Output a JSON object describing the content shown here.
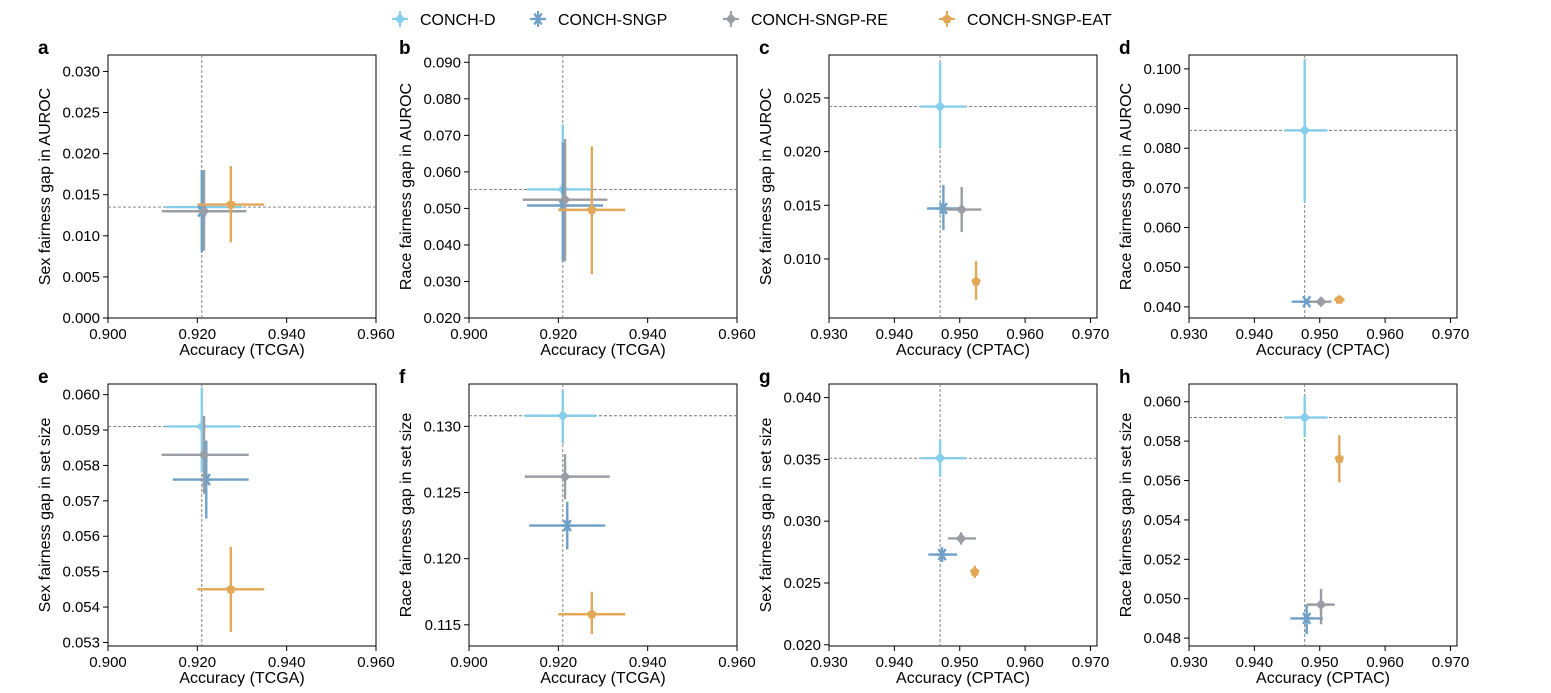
{
  "legend": [
    {
      "name": "CONCH-D",
      "color": "#87CEEB",
      "marker": "diamond"
    },
    {
      "name": "CONCH-SNGP",
      "color": "#6FA0C8",
      "marker": "star"
    },
    {
      "name": "CONCH-SNGP-RE",
      "color": "#9A9DA3",
      "marker": "diamond"
    },
    {
      "name": "CONCH-SNGP-EAT",
      "color": "#E2A857",
      "marker": "pentagon"
    }
  ],
  "chart_data": [
    {
      "panel": "a",
      "type": "scatter",
      "xlabel": "Accuracy (TCGA)",
      "ylabel": "Sex fairness gap in AUROC",
      "xlim": [
        0.9,
        0.96
      ],
      "ylim": [
        0.0,
        0.032
      ],
      "xticks": [
        "0.900",
        "0.920",
        "0.940",
        "0.960"
      ],
      "yticks": [
        "0.000",
        "0.005",
        "0.010",
        "0.015",
        "0.020",
        "0.025",
        "0.030"
      ],
      "ref": {
        "x": 0.921,
        "y": 0.0135
      },
      "points": [
        {
          "series": "CONCH-D",
          "x": 0.921,
          "y": 0.0135,
          "xerr": [
            0.913,
            0.93
          ],
          "yerr": [
            0.0085,
            0.018
          ]
        },
        {
          "series": "CONCH-SNGP",
          "x": 0.921,
          "y": 0.013,
          "xerr": [
            0.913,
            0.93
          ],
          "yerr": [
            0.008,
            0.018
          ]
        },
        {
          "series": "CONCH-SNGP-RE",
          "x": 0.9215,
          "y": 0.013,
          "xerr": [
            0.912,
            0.931
          ],
          "yerr": [
            0.0082,
            0.018
          ]
        },
        {
          "series": "CONCH-SNGP-EAT",
          "x": 0.9275,
          "y": 0.0138,
          "xerr": [
            0.92,
            0.935
          ],
          "yerr": [
            0.0092,
            0.0185
          ]
        }
      ]
    },
    {
      "panel": "b",
      "type": "scatter",
      "xlabel": "Accuracy (TCGA)",
      "ylabel": "Race fairness gap in AUROC",
      "xlim": [
        0.9,
        0.96
      ],
      "ylim": [
        0.02,
        0.092
      ],
      "xticks": [
        "0.900",
        "0.920",
        "0.940",
        "0.960"
      ],
      "yticks": [
        "0.020",
        "0.030",
        "0.040",
        "0.050",
        "0.060",
        "0.070",
        "0.080",
        "0.090"
      ],
      "ref": {
        "x": 0.921,
        "y": 0.0552
      },
      "points": [
        {
          "series": "CONCH-D",
          "x": 0.921,
          "y": 0.0552,
          "xerr": [
            0.913,
            0.928
          ],
          "yerr": [
            0.037,
            0.073
          ]
        },
        {
          "series": "CONCH-SNGP",
          "x": 0.921,
          "y": 0.0508,
          "xerr": [
            0.913,
            0.93
          ],
          "yerr": [
            0.0355,
            0.068
          ]
        },
        {
          "series": "CONCH-SNGP-RE",
          "x": 0.9215,
          "y": 0.0524,
          "xerr": [
            0.912,
            0.931
          ],
          "yerr": [
            0.0355,
            0.069
          ]
        },
        {
          "series": "CONCH-SNGP-EAT",
          "x": 0.9275,
          "y": 0.0496,
          "xerr": [
            0.92,
            0.935
          ],
          "yerr": [
            0.032,
            0.067
          ]
        }
      ]
    },
    {
      "panel": "c",
      "type": "scatter",
      "xlabel": "Accuracy (CPTAC)",
      "ylabel": "Sex fairness gap in AUROC",
      "xlim": [
        0.93,
        0.971
      ],
      "ylim": [
        0.0045,
        0.029
      ],
      "xticks": [
        "0.930",
        "0.940",
        "0.950",
        "0.960",
        "0.970"
      ],
      "yticks": [
        "0.010",
        "0.015",
        "0.020",
        "0.025"
      ],
      "ref": {
        "x": 0.947,
        "y": 0.0242
      },
      "points": [
        {
          "series": "CONCH-D",
          "x": 0.947,
          "y": 0.0242,
          "xerr": [
            0.944,
            0.951
          ],
          "yerr": [
            0.0203,
            0.0283
          ]
        },
        {
          "series": "CONCH-SNGP",
          "x": 0.9475,
          "y": 0.0147,
          "xerr": [
            0.945,
            0.9505
          ],
          "yerr": [
            0.0127,
            0.0169
          ]
        },
        {
          "series": "CONCH-SNGP-RE",
          "x": 0.9503,
          "y": 0.0146,
          "xerr": [
            0.9477,
            0.9533
          ],
          "yerr": [
            0.0125,
            0.0167
          ]
        },
        {
          "series": "CONCH-SNGP-EAT",
          "x": 0.9525,
          "y": 0.0079,
          "xerr": [
            0.952,
            0.953
          ],
          "yerr": [
            0.0062,
            0.0098
          ]
        }
      ]
    },
    {
      "panel": "d",
      "type": "scatter",
      "xlabel": "Accuracy (CPTAC)",
      "ylabel": "Race fairness gap in AUROC",
      "xlim": [
        0.93,
        0.971
      ],
      "ylim": [
        0.0372,
        0.1035
      ],
      "xticks": [
        "0.930",
        "0.940",
        "0.950",
        "0.960",
        "0.970"
      ],
      "yticks": [
        "0.040",
        "0.050",
        "0.060",
        "0.070",
        "0.080",
        "0.090",
        "0.100"
      ],
      "ref": {
        "x": 0.9477,
        "y": 0.0845
      },
      "points": [
        {
          "series": "CONCH-D",
          "x": 0.9477,
          "y": 0.0845,
          "xerr": [
            0.9446,
            0.9512
          ],
          "yerr": [
            0.0665,
            0.1025
          ]
        },
        {
          "series": "CONCH-SNGP",
          "x": 0.948,
          "y": 0.0413,
          "xerr": [
            0.9457,
            0.9498
          ],
          "yerr": [
            0.0407,
            0.0419
          ]
        },
        {
          "series": "CONCH-SNGP-RE",
          "x": 0.9502,
          "y": 0.0413,
          "xerr": [
            0.9485,
            0.9518
          ],
          "yerr": [
            0.0408,
            0.0418
          ]
        },
        {
          "series": "CONCH-SNGP-EAT",
          "x": 0.953,
          "y": 0.0418,
          "xerr": [
            0.9522,
            0.9538
          ],
          "yerr": [
            0.0413,
            0.0423
          ]
        }
      ]
    },
    {
      "panel": "e",
      "type": "scatter",
      "xlabel": "Accuracy (TCGA)",
      "ylabel": "Sex fairness gap in set size",
      "xlim": [
        0.9,
        0.96
      ],
      "ylim": [
        0.0529,
        0.0603
      ],
      "xticks": [
        "0.900",
        "0.920",
        "0.940",
        "0.960"
      ],
      "yticks": [
        "0.053",
        "0.054",
        "0.055",
        "0.056",
        "0.057",
        "0.058",
        "0.059",
        "0.060"
      ],
      "ref": {
        "x": 0.921,
        "y": 0.0591
      },
      "points": [
        {
          "series": "CONCH-D",
          "x": 0.921,
          "y": 0.0591,
          "xerr": [
            0.913,
            0.9295
          ],
          "yerr": [
            0.0578,
            0.0602
          ]
        },
        {
          "series": "CONCH-SNGP",
          "x": 0.922,
          "y": 0.0576,
          "xerr": [
            0.9145,
            0.9315
          ],
          "yerr": [
            0.0565,
            0.0587
          ]
        },
        {
          "series": "CONCH-SNGP-RE",
          "x": 0.9215,
          "y": 0.0583,
          "xerr": [
            0.912,
            0.9315
          ],
          "yerr": [
            0.0572,
            0.0594
          ]
        },
        {
          "series": "CONCH-SNGP-EAT",
          "x": 0.9275,
          "y": 0.0545,
          "xerr": [
            0.92,
            0.935
          ],
          "yerr": [
            0.0533,
            0.0557
          ]
        }
      ]
    },
    {
      "panel": "f",
      "type": "scatter",
      "xlabel": "Accuracy (TCGA)",
      "ylabel": "Race fairness gap in set size",
      "xlim": [
        0.9,
        0.96
      ],
      "ylim": [
        0.1134,
        0.1332
      ],
      "xticks": [
        "0.900",
        "0.920",
        "0.940",
        "0.960"
      ],
      "yticks": [
        "0.115",
        "0.120",
        "0.125",
        "0.130"
      ],
      "ref": {
        "x": 0.921,
        "y": 0.1308
      },
      "points": [
        {
          "series": "CONCH-D",
          "x": 0.921,
          "y": 0.1308,
          "xerr": [
            0.9125,
            0.9285
          ],
          "yerr": [
            0.1287,
            0.1327
          ]
        },
        {
          "series": "CONCH-SNGP",
          "x": 0.922,
          "y": 0.1225,
          "xerr": [
            0.9135,
            0.9305
          ],
          "yerr": [
            0.1207,
            0.1243
          ]
        },
        {
          "series": "CONCH-SNGP-RE",
          "x": 0.9215,
          "y": 0.1262,
          "xerr": [
            0.9125,
            0.9315
          ],
          "yerr": [
            0.1245,
            0.1279
          ]
        },
        {
          "series": "CONCH-SNGP-EAT",
          "x": 0.9275,
          "y": 0.1158,
          "xerr": [
            0.92,
            0.935
          ],
          "yerr": [
            0.1143,
            0.1175
          ]
        }
      ]
    },
    {
      "panel": "g",
      "type": "scatter",
      "xlabel": "Accuracy (CPTAC)",
      "ylabel": "Sex fairness gap in set size",
      "xlim": [
        0.93,
        0.971
      ],
      "ylim": [
        0.0199,
        0.0411
      ],
      "xticks": [
        "0.930",
        "0.940",
        "0.950",
        "0.960",
        "0.970"
      ],
      "yticks": [
        "0.020",
        "0.025",
        "0.030",
        "0.035",
        "0.040"
      ],
      "ref": {
        "x": 0.947,
        "y": 0.0351
      },
      "points": [
        {
          "series": "CONCH-D",
          "x": 0.947,
          "y": 0.0351,
          "xerr": [
            0.944,
            0.9508
          ],
          "yerr": [
            0.0336,
            0.0366
          ]
        },
        {
          "series": "CONCH-SNGP",
          "x": 0.9473,
          "y": 0.0273,
          "xerr": [
            0.9452,
            0.9496
          ],
          "yerr": [
            0.0267,
            0.0279
          ]
        },
        {
          "series": "CONCH-SNGP-RE",
          "x": 0.9502,
          "y": 0.0286,
          "xerr": [
            0.9482,
            0.9525
          ],
          "yerr": [
            0.0281,
            0.0291
          ]
        },
        {
          "series": "CONCH-SNGP-EAT",
          "x": 0.9523,
          "y": 0.0259,
          "xerr": [
            0.9519,
            0.9527
          ],
          "yerr": [
            0.0254,
            0.0264
          ]
        }
      ]
    },
    {
      "panel": "h",
      "type": "scatter",
      "xlabel": "Accuracy (CPTAC)",
      "ylabel": "Race fairness gap in set size",
      "xlim": [
        0.93,
        0.971
      ],
      "ylim": [
        0.0476,
        0.0609
      ],
      "xticks": [
        "0.930",
        "0.940",
        "0.950",
        "0.960",
        "0.970"
      ],
      "yticks": [
        "0.048",
        "0.050",
        "0.052",
        "0.054",
        "0.056",
        "0.058",
        "0.060"
      ],
      "ref": {
        "x": 0.9477,
        "y": 0.0592
      },
      "points": [
        {
          "series": "CONCH-D",
          "x": 0.9477,
          "y": 0.0592,
          "xerr": [
            0.9446,
            0.9512
          ],
          "yerr": [
            0.0582,
            0.0603
          ]
        },
        {
          "series": "CONCH-SNGP",
          "x": 0.948,
          "y": 0.049,
          "xerr": [
            0.9455,
            0.9505
          ],
          "yerr": [
            0.0482,
            0.0497
          ]
        },
        {
          "series": "CONCH-SNGP-RE",
          "x": 0.9502,
          "y": 0.0497,
          "xerr": [
            0.948,
            0.9523
          ],
          "yerr": [
            0.0487,
            0.0505
          ]
        },
        {
          "series": "CONCH-SNGP-EAT",
          "x": 0.953,
          "y": 0.0571,
          "xerr": [
            0.9526,
            0.9534
          ],
          "yerr": [
            0.0559,
            0.0583
          ]
        }
      ]
    }
  ]
}
